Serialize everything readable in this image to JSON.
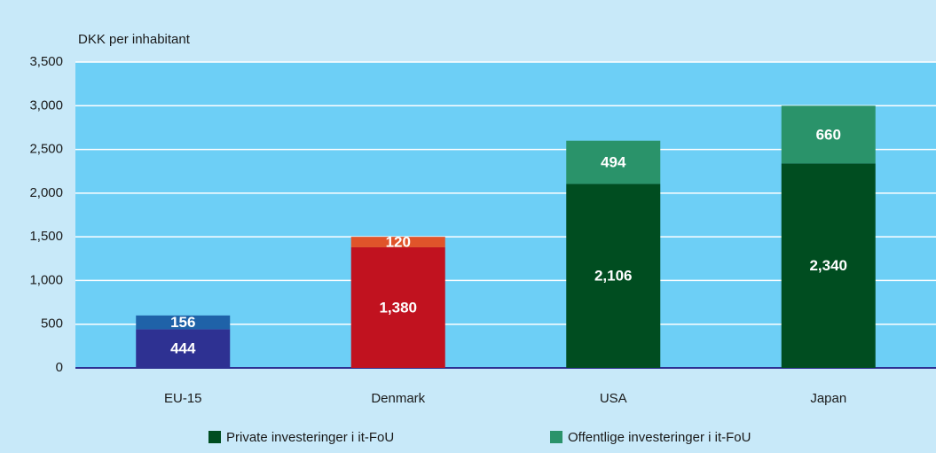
{
  "chart_data": {
    "type": "stacked_bar",
    "y_label": "DKK per inhabitant",
    "categories": [
      "EU-15",
      "Denmark",
      "USA",
      "Japan"
    ],
    "series": [
      {
        "name": "Private investeringer i it-FoU",
        "color": "#004d20",
        "colors": [
          "#2e3192",
          "#c1121f",
          "#004d20",
          "#004d20"
        ],
        "values": [
          444,
          1380,
          2106,
          2340
        ],
        "value_labels": [
          "444",
          "1,380",
          "2,106",
          "2,340"
        ]
      },
      {
        "name": "Offentlige investeringer i it-FoU",
        "color": "#2a936a",
        "colors": [
          "#1f62a8",
          "#e0542a",
          "#2a936a",
          "#2a936a"
        ],
        "values": [
          156,
          120,
          494,
          660
        ],
        "value_labels": [
          "156",
          "120",
          "494",
          "660"
        ]
      }
    ],
    "ylim": [
      0,
      3500
    ],
    "yticks": [
      0,
      500,
      {
        "value": 1000,
        "label": "1,000"
      },
      {
        "value": 1500,
        "label": "1,500"
      },
      {
        "value": 2000,
        "label": "2,000"
      },
      {
        "value": 2500,
        "label": "2,500"
      },
      {
        "value": 3000,
        "label": "3,000"
      },
      {
        "value": 3500,
        "label": "3,500"
      }
    ],
    "grid": true
  }
}
